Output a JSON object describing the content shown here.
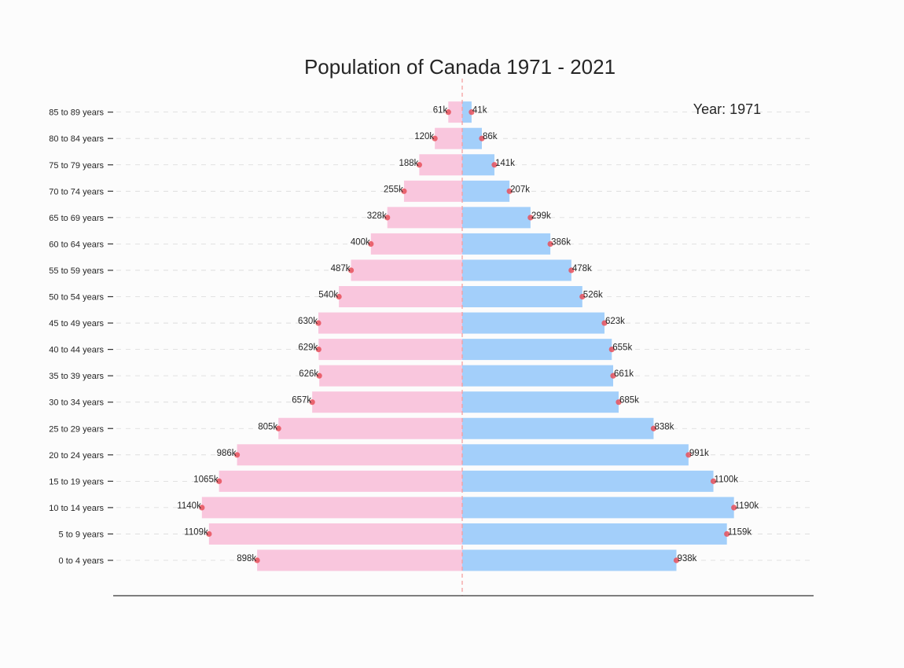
{
  "chart_data": {
    "type": "bar",
    "title": "Population of Canada 1971 - 2021",
    "annotation": "Year: 1971",
    "categories": [
      "0 to 4 years",
      "5 to 9 years",
      "10 to 14 years",
      "15 to 19 years",
      "20 to 24 years",
      "25 to 29 years",
      "30 to 34 years",
      "35 to 39 years",
      "40 to 44 years",
      "45 to 49 years",
      "50 to 54 years",
      "55 to 59 years",
      "60 to 64 years",
      "65 to 69 years",
      "70 to 74 years",
      "75 to 79 years",
      "80 to 84 years",
      "85 to 89 years"
    ],
    "series": [
      {
        "color": "#f9c6dd",
        "direction": "left",
        "values": [
          898,
          1109,
          1140,
          1065,
          986,
          805,
          657,
          626,
          629,
          630,
          540,
          487,
          400,
          328,
          255,
          188,
          120,
          61
        ],
        "labels": [
          "898k",
          "1109k",
          "1140k",
          "1065k",
          "986k",
          "805k",
          "657k",
          "626k",
          "629k",
          "630k",
          "540k",
          "487k",
          "400k",
          "328k",
          "255k",
          "188k",
          "120k",
          "61k"
        ]
      },
      {
        "color": "#a3cffa",
        "direction": "right",
        "values": [
          938,
          1159,
          1190,
          1100,
          991,
          838,
          685,
          661,
          655,
          623,
          526,
          478,
          386,
          299,
          207,
          141,
          86,
          41
        ],
        "labels": [
          "938k",
          "1159k",
          "1190k",
          "1100k",
          "991k",
          "838k",
          "685k",
          "661k",
          "655k",
          "623k",
          "526k",
          "478k",
          "386k",
          "299k",
          "207k",
          "141k",
          "86k",
          "41k"
        ]
      }
    ],
    "units": "thousands",
    "marker_color": "#e8505b",
    "center_line_color": "#f4a0a0",
    "grid": "dashed horizontal"
  }
}
